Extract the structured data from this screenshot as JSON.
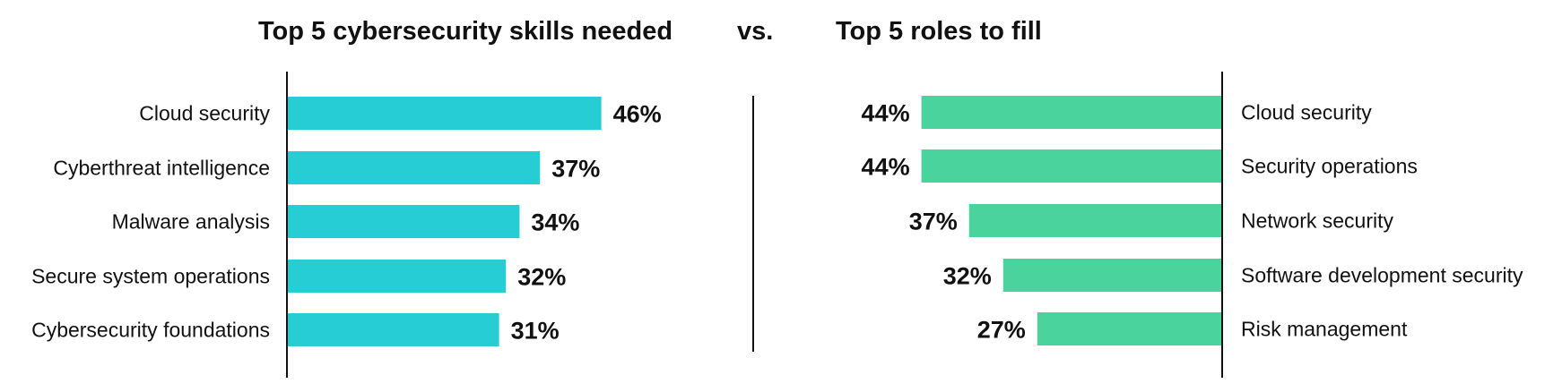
{
  "titles": {
    "left": "Top 5 cybersecurity skills needed",
    "vs": "vs.",
    "right": "Top 5 roles to fill"
  },
  "colors": {
    "left_bar": "#26CDD5",
    "right_bar": "#4BD39D",
    "axis": "#111111"
  },
  "chart_data": [
    {
      "type": "bar",
      "orientation": "horizontal",
      "title": "Top 5 cybersecurity skills needed",
      "categories": [
        "Cloud security",
        "Cyberthreat intelligence",
        "Malware analysis",
        "Secure system operations",
        "Cybersecurity foundations"
      ],
      "values": [
        46,
        37,
        34,
        32,
        31
      ],
      "value_labels": [
        "46%",
        "37%",
        "34%",
        "32%",
        "31%"
      ],
      "unit": "%",
      "grid": false
    },
    {
      "type": "bar",
      "orientation": "horizontal",
      "direction": "right-to-left",
      "title": "Top 5 roles to fill",
      "categories": [
        "Cloud security",
        "Security operations",
        "Network security",
        "Software development security",
        "Risk management"
      ],
      "values": [
        44,
        44,
        37,
        32,
        27
      ],
      "value_labels": [
        "44%",
        "44%",
        "37%",
        "32%",
        "27%"
      ],
      "unit": "%",
      "grid": false
    }
  ]
}
